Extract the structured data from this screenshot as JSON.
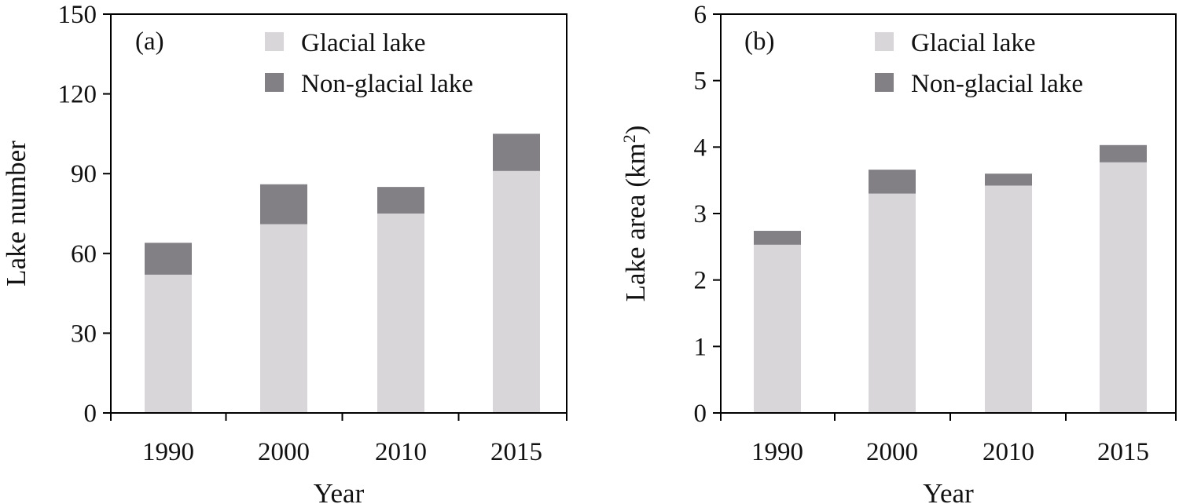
{
  "chart_data": [
    {
      "type": "bar",
      "stacked": true,
      "panel_label": "(a)",
      "categories": [
        "1990",
        "2000",
        "2010",
        "2015"
      ],
      "series": [
        {
          "name": "Glacial lake",
          "values": [
            52,
            71,
            75,
            91
          ]
        },
        {
          "name": "Non-glacial lake",
          "values": [
            12,
            15,
            10,
            14
          ]
        }
      ],
      "xlabel": "Year",
      "ylabel": "Lake number",
      "ylabel_sup": "",
      "ylabel_suffix": "",
      "ylim": [
        0,
        150
      ],
      "yticks": [
        "0",
        "30",
        "60",
        "90",
        "120",
        "150"
      ],
      "grid": false,
      "legend_position": "top-center"
    },
    {
      "type": "bar",
      "stacked": true,
      "panel_label": "(b)",
      "categories": [
        "1990",
        "2000",
        "2010",
        "2015"
      ],
      "series": [
        {
          "name": "Glacial lake",
          "values": [
            2.53,
            3.3,
            3.42,
            3.77
          ]
        },
        {
          "name": "Non-glacial lake",
          "values": [
            0.21,
            0.36,
            0.18,
            0.26
          ]
        }
      ],
      "xlabel": "Year",
      "ylabel": "Lake area (km",
      "ylabel_sup": "2",
      "ylabel_suffix": ")",
      "ylim": [
        0,
        6
      ],
      "yticks": [
        "0",
        "1",
        "2",
        "3",
        "4",
        "5",
        "6"
      ],
      "grid": false,
      "legend_position": "top-center"
    }
  ],
  "colors": {
    "glacial": "#d8d6d9",
    "non_glacial": "#828085"
  }
}
